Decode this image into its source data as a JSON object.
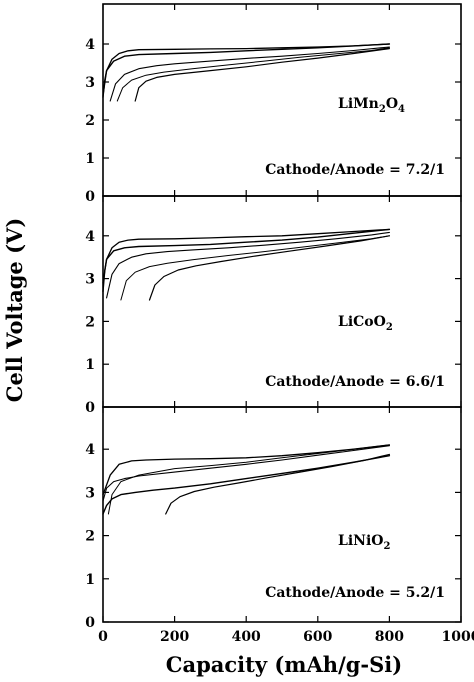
{
  "chart_data": {
    "type": "line",
    "ylabel": "Cell Voltage (V)",
    "xlabel": "Capacity (mAh/g-Si)",
    "xlim": [
      0,
      1000
    ],
    "xticks": [
      0,
      200,
      400,
      600,
      800,
      1000
    ],
    "ylim": [
      0,
      5
    ],
    "yticks": [
      0,
      1,
      2,
      3,
      4
    ],
    "grid": false,
    "panels": [
      {
        "label_formula": [
          {
            "t": "LiMn",
            "sub": false
          },
          {
            "t": "2",
            "sub": true
          },
          {
            "t": "O",
            "sub": false
          },
          {
            "t": "4",
            "sub": true
          }
        ],
        "ratio_label": "Cathode/Anode = 7.2/1",
        "series": [
          {
            "x": [
              0,
              10,
              25,
              45,
              70,
              100,
              200,
              300,
              400,
              500,
              600,
              700,
              800
            ],
            "y": [
              2.65,
              3.3,
              3.6,
              3.75,
              3.82,
              3.85,
              3.86,
              3.87,
              3.88,
              3.9,
              3.92,
              3.95,
              4.0
            ]
          },
          {
            "x": [
              20,
              35,
              60,
              100,
              150,
              200,
              300,
              400,
              500,
              600,
              700,
              800
            ],
            "y": [
              2.5,
              2.95,
              3.2,
              3.35,
              3.43,
              3.48,
              3.55,
              3.62,
              3.68,
              3.75,
              3.83,
              3.92
            ]
          },
          {
            "x": [
              0,
              5,
              10,
              30,
              60,
              100,
              200,
              300,
              400,
              500,
              600,
              700,
              800
            ],
            "y": [
              2.6,
              3.05,
              3.3,
              3.55,
              3.68,
              3.72,
              3.75,
              3.78,
              3.82,
              3.86,
              3.9,
              3.95,
              4.0
            ]
          },
          {
            "x": [
              40,
              55,
              80,
              120,
              170,
              250,
              350,
              450,
              550,
              650,
              750,
              800
            ],
            "y": [
              2.5,
              2.85,
              3.05,
              3.18,
              3.26,
              3.35,
              3.45,
              3.55,
              3.65,
              3.74,
              3.83,
              3.9
            ]
          },
          {
            "x": [
              90,
              100,
              120,
              150,
              200,
              300,
              400,
              500,
              600,
              700,
              800
            ],
            "y": [
              2.5,
              2.85,
              3.02,
              3.12,
              3.2,
              3.3,
              3.4,
              3.52,
              3.63,
              3.75,
              3.88
            ]
          }
        ]
      },
      {
        "label_formula": [
          {
            "t": "LiCoO",
            "sub": false
          },
          {
            "t": "2",
            "sub": true
          }
        ],
        "ratio_label": "Cathode/Anode = 6.6/1",
        "series": [
          {
            "x": [
              0,
              10,
              25,
              45,
              70,
              100,
              200,
              300,
              400,
              500,
              600,
              700,
              800
            ],
            "y": [
              2.9,
              3.45,
              3.72,
              3.85,
              3.9,
              3.92,
              3.93,
              3.95,
              3.98,
              4.0,
              4.05,
              4.1,
              4.15
            ]
          },
          {
            "x": [
              10,
              25,
              45,
              80,
              120,
              180,
              250,
              350,
              450,
              550,
              650,
              750,
              800
            ],
            "y": [
              2.55,
              3.1,
              3.35,
              3.5,
              3.58,
              3.63,
              3.67,
              3.72,
              3.78,
              3.85,
              3.93,
              4.02,
              4.08
            ]
          },
          {
            "x": [
              0,
              5,
              10,
              30,
              60,
              100,
              200,
              300,
              400,
              500,
              600,
              700,
              800
            ],
            "y": [
              2.7,
              3.2,
              3.45,
              3.65,
              3.72,
              3.75,
              3.77,
              3.8,
              3.85,
              3.9,
              3.97,
              4.06,
              4.15
            ]
          },
          {
            "x": [
              50,
              65,
              90,
              130,
              180,
              250,
              350,
              450,
              550,
              650,
              750,
              800
            ],
            "y": [
              2.5,
              2.95,
              3.15,
              3.28,
              3.36,
              3.44,
              3.54,
              3.63,
              3.73,
              3.83,
              3.93,
              4.0
            ]
          },
          {
            "x": [
              130,
              145,
              170,
              210,
              260,
              330,
              420,
              520,
              620,
              720,
              800
            ],
            "y": [
              2.5,
              2.85,
              3.05,
              3.2,
              3.3,
              3.4,
              3.52,
              3.64,
              3.76,
              3.88,
              4.0
            ]
          }
        ]
      },
      {
        "label_formula": [
          {
            "t": "LiNiO",
            "sub": false
          },
          {
            "t": "2",
            "sub": true
          }
        ],
        "ratio_label": "Cathode/Anode = 5.2/1",
        "series": [
          {
            "x": [
              0,
              20,
              45,
              80,
              120,
              200,
              300,
              400,
              500,
              600,
              700,
              800
            ],
            "y": [
              2.95,
              3.4,
              3.65,
              3.73,
              3.75,
              3.77,
              3.78,
              3.8,
              3.85,
              3.92,
              4.0,
              4.1
            ]
          },
          {
            "x": [
              0,
              10,
              30,
              60,
              100,
              200,
              300,
              400,
              500,
              600,
              700,
              800
            ],
            "y": [
              2.8,
              3.1,
              3.25,
              3.32,
              3.38,
              3.47,
              3.56,
              3.65,
              3.75,
              3.86,
              3.97,
              4.08
            ]
          },
          {
            "x": [
              0,
              10,
              25,
              50,
              90,
              140,
              200,
              300,
              400,
              500,
              600,
              700,
              800
            ],
            "y": [
              2.5,
              2.7,
              2.85,
              2.95,
              3.0,
              3.05,
              3.1,
              3.2,
              3.32,
              3.44,
              3.56,
              3.7,
              3.85
            ]
          },
          {
            "x": [
              15,
              25,
              50,
              100,
              200,
              300,
              400,
              500,
              600,
              700,
              800
            ],
            "y": [
              2.5,
              2.95,
              3.25,
              3.4,
              3.55,
              3.62,
              3.7,
              3.8,
              3.9,
              4.0,
              4.1
            ]
          },
          {
            "x": [
              175,
              190,
              215,
              255,
              310,
              380,
              460,
              550,
              640,
              730,
              800
            ],
            "y": [
              2.5,
              2.75,
              2.9,
              3.02,
              3.12,
              3.22,
              3.34,
              3.47,
              3.6,
              3.74,
              3.88
            ]
          }
        ]
      }
    ]
  }
}
